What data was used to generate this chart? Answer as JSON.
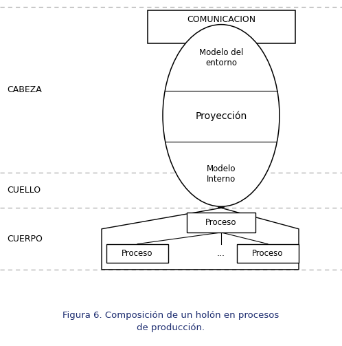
{
  "title": "Figura 6. Composición de un holón en procesos\nde producción.",
  "bg_color": "#ffffff",
  "label_cabeza": "CABEZA",
  "label_cuello": "CUELLO",
  "label_cuerpo": "CUERPO",
  "label_comunicacion": "COMUNICACION",
  "label_modelo_entorno": "Modelo del\nentorno",
  "label_proyeccion": "Proyección",
  "label_modelo_interno": "Modelo\nInterno",
  "label_proceso_top": "Proceso",
  "label_proceso_left": "Proceso",
  "label_dots": "...",
  "label_proceso_right": "Proceso",
  "dashed_line_color": "#aaaaaa",
  "figure_bg": "#ffffff",
  "caption_color": "#1a2a6e"
}
